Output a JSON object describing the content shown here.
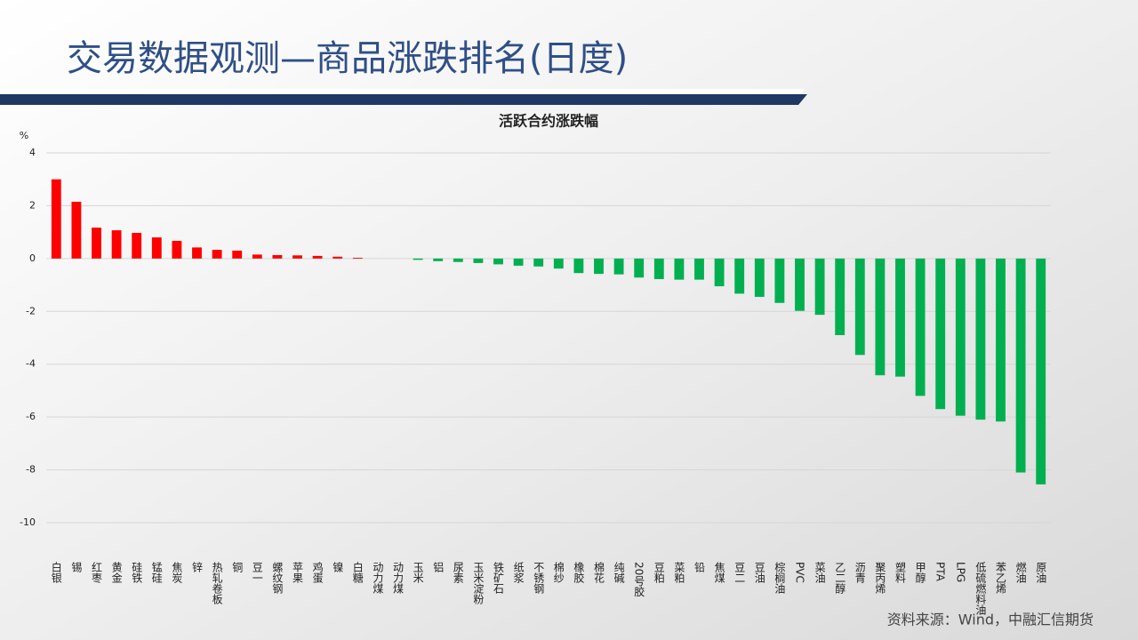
{
  "header": {
    "title": "交易数据观测—商品涨跌排名(日度)"
  },
  "chart_data": {
    "type": "bar",
    "title": "活跃合约涨跌幅",
    "y_label": "%",
    "categories": [
      "白银",
      "锡",
      "红枣",
      "黄金",
      "硅铁",
      "锰硅",
      "焦炭",
      "锌",
      "热轧卷板",
      "铜",
      "豆一",
      "螺纹钢",
      "苹果",
      "鸡蛋",
      "镍",
      "白糖",
      "动力煤",
      "动力煤",
      "玉米",
      "铝",
      "尿素",
      "玉米淀粉",
      "铁矿石",
      "纸浆",
      "不锈钢",
      "棉纱",
      "橡胶",
      "棉花",
      "纯碱",
      "20号胶",
      "豆粕",
      "菜粕",
      "铅",
      "焦煤",
      "豆二",
      "豆油",
      "棕榈油",
      "PVC",
      "菜油",
      "乙二醇",
      "沥青",
      "聚丙烯",
      "塑料",
      "甲醇",
      "PTA",
      "LPG",
      "低硫燃料油",
      "苯乙烯",
      "燃油",
      "原油"
    ],
    "values": [
      3.0,
      2.15,
      1.17,
      1.07,
      0.97,
      0.8,
      0.67,
      0.42,
      0.33,
      0.3,
      0.15,
      0.13,
      0.12,
      0.1,
      0.07,
      0.03,
      0,
      0,
      -0.05,
      -0.1,
      -0.13,
      -0.17,
      -0.22,
      -0.27,
      -0.3,
      -0.38,
      -0.55,
      -0.58,
      -0.6,
      -0.72,
      -0.78,
      -0.8,
      -0.8,
      -1.05,
      -1.33,
      -1.45,
      -1.68,
      -1.98,
      -2.13,
      -2.9,
      -3.65,
      -4.42,
      -4.47,
      -5.2,
      -5.7,
      -5.95,
      -6.1,
      -6.17,
      -8.1,
      -8.55
    ],
    "positive_color": "#ff0000",
    "negative_color": "#00b050",
    "ylim": [
      -10,
      4
    ],
    "yticks": [
      4,
      2,
      0,
      -2,
      -4,
      -6,
      -8,
      -10
    ],
    "grid": true
  },
  "footer": {
    "source": "资料来源：Wind，中融汇信期货"
  }
}
